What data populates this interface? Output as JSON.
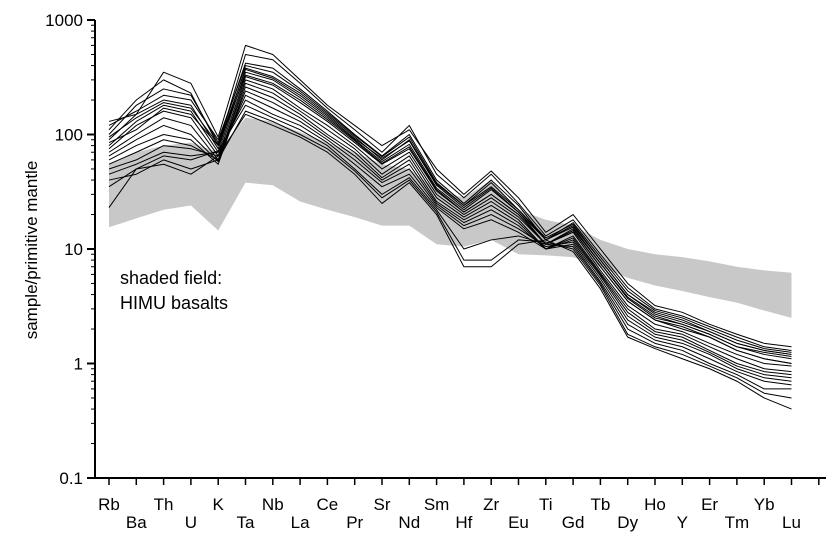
{
  "chart_data": {
    "type": "line",
    "title": "",
    "xlabel": "",
    "ylabel": "sample/primitive mantle",
    "yscale": "log",
    "ylim": [
      0.1,
      1000
    ],
    "y_ticks": [
      "0.1",
      "1",
      "10",
      "100",
      "1000"
    ],
    "categories": [
      "Rb",
      "Ba",
      "Th",
      "U",
      "K",
      "Ta",
      "Nb",
      "La",
      "Ce",
      "Pr",
      "Sr",
      "Nd",
      "Sm",
      "Hf",
      "Zr",
      "Eu",
      "Ti",
      "Gd",
      "Tb",
      "Dy",
      "Ho",
      "Y",
      "Er",
      "Tm",
      "Yb",
      "Lu"
    ],
    "line_color": "#000000",
    "field_color": "#c8c8c8",
    "annotation": {
      "line1": "shaded field:",
      "line2": "HIMU basalts"
    },
    "shaded_field": {
      "upper": [
        56,
        70,
        80,
        85,
        70,
        140,
        130,
        105,
        85,
        70,
        55,
        50,
        33,
        28,
        40,
        22,
        18,
        16,
        12,
        10,
        9,
        8.5,
        7.8,
        7,
        6.5,
        6.2
      ],
      "lower": [
        15.5,
        18.5,
        22,
        24,
        14.5,
        38,
        36,
        26,
        22,
        19,
        16,
        16,
        11,
        10.5,
        12,
        9,
        8.8,
        8.5,
        7,
        5.6,
        4.8,
        4.3,
        3.8,
        3.4,
        2.9,
        2.5
      ]
    },
    "series": [
      {
        "values": [
          130,
          150,
          350,
          280,
          95,
          600,
          500,
          300,
          180,
          120,
          80,
          110,
          50,
          30,
          48,
          28,
          14,
          20,
          10,
          5,
          3.2,
          2.8,
          2.2,
          1.8,
          1.5,
          1.4
        ]
      },
      {
        "values": [
          110,
          200,
          300,
          230,
          80,
          500,
          450,
          280,
          170,
          110,
          70,
          120,
          45,
          28,
          45,
          25,
          13,
          18,
          9,
          4.6,
          3,
          2.6,
          2.1,
          1.7,
          1.4,
          1.3
        ]
      },
      {
        "values": [
          100,
          180,
          250,
          220,
          85,
          420,
          380,
          250,
          160,
          100,
          65,
          100,
          40,
          25,
          40,
          24,
          12,
          17,
          8.5,
          4.3,
          2.9,
          2.5,
          2,
          1.6,
          1.35,
          1.25
        ]
      },
      {
        "values": [
          90,
          150,
          200,
          180,
          75,
          380,
          320,
          230,
          150,
          95,
          60,
          90,
          37,
          24,
          35,
          22,
          12,
          16,
          8,
          4,
          2.7,
          2.3,
          1.9,
          1.5,
          1.3,
          1.2
        ]
      },
      {
        "values": [
          80,
          130,
          180,
          160,
          70,
          350,
          300,
          210,
          140,
          90,
          58,
          82,
          34,
          22,
          33,
          21,
          11,
          15,
          7.5,
          3.7,
          2.5,
          2.2,
          1.8,
          1.4,
          1.2,
          1.1
        ]
      },
      {
        "values": [
          75,
          120,
          160,
          140,
          65,
          320,
          270,
          190,
          130,
          85,
          55,
          75,
          32,
          21,
          30,
          20,
          11,
          14.5,
          7,
          3.5,
          2.4,
          2.1,
          1.7,
          1.3,
          1.1,
          1.0
        ]
      },
      {
        "values": [
          70,
          100,
          140,
          120,
          60,
          300,
          250,
          170,
          120,
          80,
          50,
          70,
          30,
          20,
          28,
          19,
          11,
          14,
          6.5,
          3.2,
          2.2,
          1.9,
          1.5,
          1.2,
          1.0,
          0.95
        ]
      },
      {
        "values": [
          65,
          90,
          120,
          100,
          58,
          280,
          230,
          160,
          110,
          75,
          45,
          65,
          28,
          19,
          26,
          18,
          10,
          13,
          6.2,
          3.0,
          2.0,
          1.8,
          1.4,
          1.1,
          0.9,
          0.85
        ]
      },
      {
        "values": [
          60,
          80,
          100,
          90,
          55,
          260,
          210,
          150,
          100,
          70,
          42,
          60,
          26,
          18,
          24,
          17,
          10,
          12.5,
          6,
          2.8,
          1.9,
          1.7,
          1.3,
          1.0,
          0.85,
          0.8
        ]
      },
      {
        "values": [
          55,
          70,
          90,
          80,
          60,
          240,
          190,
          140,
          95,
          65,
          40,
          55,
          25,
          17,
          22,
          16,
          10,
          12,
          5.8,
          2.6,
          1.8,
          1.6,
          1.25,
          0.95,
          0.8,
          0.75
        ]
      },
      {
        "values": [
          50,
          60,
          80,
          75,
          65,
          220,
          170,
          130,
          90,
          60,
          38,
          50,
          24,
          16,
          20,
          15,
          10.5,
          11.5,
          5.5,
          2.4,
          1.7,
          1.5,
          1.2,
          0.9,
          0.75,
          0.7
        ]
      },
      {
        "values": [
          45,
          55,
          70,
          65,
          70,
          200,
          150,
          120,
          85,
          55,
          35,
          45,
          23,
          15,
          18,
          14,
          10,
          11,
          5.2,
          2.2,
          1.6,
          1.4,
          1.1,
          0.85,
          0.7,
          0.65
        ]
      },
      {
        "values": [
          23,
          50,
          65,
          60,
          72,
          180,
          140,
          110,
          80,
          50,
          30,
          42,
          22,
          10,
          12,
          13,
          11,
          10.5,
          5,
          2.0,
          1.5,
          1.3,
          1.0,
          0.8,
          0.6,
          0.6
        ]
      },
      {
        "values": [
          40,
          45,
          60,
          50,
          60,
          160,
          130,
          100,
          75,
          48,
          28,
          40,
          21,
          8,
          8,
          12,
          11.5,
          10,
          4.8,
          1.8,
          1.4,
          1.2,
          0.95,
          0.75,
          0.55,
          0.5
        ]
      },
      {
        "values": [
          35,
          50,
          55,
          45,
          65,
          150,
          120,
          95,
          70,
          45,
          25,
          38,
          20,
          7,
          7,
          11,
          12,
          9.5,
          4.5,
          1.7,
          1.35,
          1.1,
          0.9,
          0.7,
          0.5,
          0.4
        ]
      },
      {
        "values": [
          85,
          110,
          170,
          150,
          80,
          330,
          280,
          200,
          135,
          88,
          56,
          78,
          33,
          21,
          30,
          20,
          11,
          14.5,
          7,
          3.5,
          2.4,
          2.0,
          1.7,
          1.3,
          1.1,
          1.0
        ]
      },
      {
        "values": [
          95,
          140,
          190,
          170,
          82,
          370,
          310,
          220,
          145,
          92,
          62,
          88,
          36,
          23,
          34,
          21,
          12,
          15.5,
          7.5,
          3.8,
          2.6,
          2.2,
          1.8,
          1.4,
          1.25,
          1.15
        ]
      },
      {
        "values": [
          120,
          160,
          220,
          200,
          90,
          400,
          350,
          240,
          155,
          98,
          64,
          95,
          38,
          24,
          38,
          22,
          12.5,
          16.5,
          8,
          4.0,
          2.8,
          2.4,
          1.9,
          1.5,
          1.3,
          1.2
        ]
      }
    ]
  }
}
